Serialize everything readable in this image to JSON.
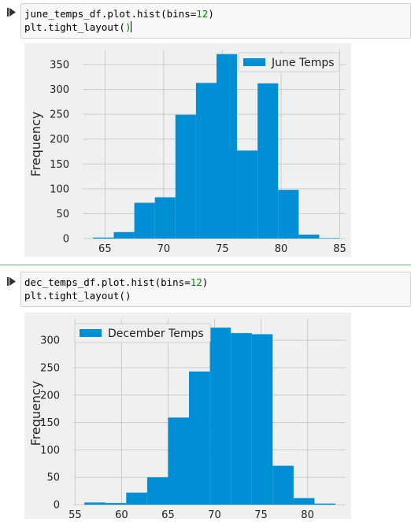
{
  "cells": [
    {
      "code": {
        "line1_prefix": "june_temps_df.plot.hist(bins=",
        "line1_number": "12",
        "line1_suffix": ")",
        "line2_prefix": "plt.tight_layout(",
        "line2_paren": ")"
      },
      "chart_data": {
        "type": "bar",
        "title": "",
        "xlabel": "",
        "ylabel": "Frequency",
        "legend": [
          "June Temps"
        ],
        "legend_position": "top-right",
        "bins": [
          {
            "start": 64.0,
            "end": 65.75,
            "value": 2
          },
          {
            "start": 65.75,
            "end": 67.5,
            "value": 13
          },
          {
            "start": 67.5,
            "end": 69.25,
            "value": 72
          },
          {
            "start": 69.25,
            "end": 71.0,
            "value": 83
          },
          {
            "start": 71.0,
            "end": 72.75,
            "value": 249
          },
          {
            "start": 72.75,
            "end": 74.5,
            "value": 313
          },
          {
            "start": 74.5,
            "end": 76.25,
            "value": 371
          },
          {
            "start": 76.25,
            "end": 78.0,
            "value": 177
          },
          {
            "start": 78.0,
            "end": 79.75,
            "value": 312
          },
          {
            "start": 79.75,
            "end": 81.5,
            "value": 98
          },
          {
            "start": 81.5,
            "end": 83.25,
            "value": 8
          },
          {
            "start": 83.25,
            "end": 85.0,
            "value": 1
          }
        ],
        "xticks": [
          65,
          70,
          75,
          80,
          85
        ],
        "yticks": [
          0,
          50,
          100,
          150,
          200,
          250,
          300,
          350
        ],
        "xlim": [
          63.1,
          85.5
        ],
        "ylim": [
          0,
          380
        ],
        "color": "#008fd5",
        "grid": true
      }
    },
    {
      "code": {
        "line1_prefix": "dec_temps_df.plot.hist(bins=",
        "line1_number": "12",
        "line1_suffix": ")",
        "line2_prefix": "plt.tight_layout(",
        "line2_paren": ")"
      },
      "chart_data": {
        "type": "bar",
        "title": "",
        "xlabel": "",
        "ylabel": "Frequency",
        "legend": [
          "December Temps"
        ],
        "legend_position": "top-left",
        "bins": [
          {
            "start": 56.0,
            "end": 58.25,
            "value": 4
          },
          {
            "start": 58.25,
            "end": 60.5,
            "value": 3
          },
          {
            "start": 60.5,
            "end": 62.75,
            "value": 22
          },
          {
            "start": 62.75,
            "end": 65.0,
            "value": 50
          },
          {
            "start": 65.0,
            "end": 67.25,
            "value": 159
          },
          {
            "start": 67.25,
            "end": 69.5,
            "value": 243
          },
          {
            "start": 69.5,
            "end": 71.75,
            "value": 323
          },
          {
            "start": 71.75,
            "end": 74.0,
            "value": 313
          },
          {
            "start": 74.0,
            "end": 76.25,
            "value": 311
          },
          {
            "start": 76.25,
            "end": 78.5,
            "value": 71
          },
          {
            "start": 78.5,
            "end": 80.75,
            "value": 12
          },
          {
            "start": 80.75,
            "end": 83.0,
            "value": 2
          }
        ],
        "xticks": [
          55,
          60,
          65,
          70,
          75,
          80
        ],
        "yticks": [
          0,
          50,
          100,
          150,
          200,
          250,
          300
        ],
        "xlim": [
          54.8,
          84.1
        ],
        "ylim": [
          0,
          339
        ],
        "color": "#008fd5",
        "grid": true
      }
    }
  ]
}
